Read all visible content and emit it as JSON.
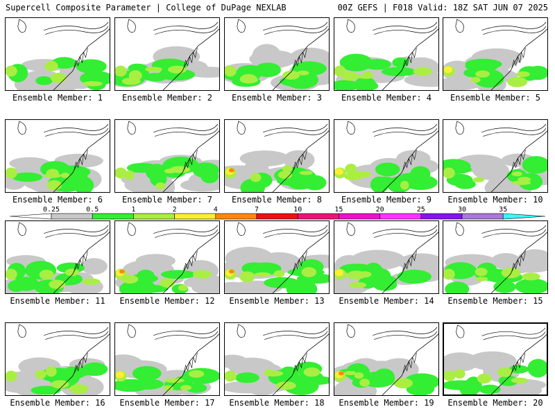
{
  "header": {
    "left_title": "Supercell Composite Parameter | College of DuPage NEXLAB",
    "right_title": "00Z GEFS | F018 Valid: 18Z SAT JUN 07 2025"
  },
  "colorbar": {
    "labels": [
      "0.25",
      "0.5",
      "1",
      "2",
      "4",
      "7",
      "10",
      "15",
      "20",
      "25",
      "30",
      "35"
    ],
    "colors": [
      "#ffffff",
      "#c8c8c8",
      "#33ee33",
      "#aaee44",
      "#ffee33",
      "#ff8811",
      "#ee1111",
      "#ee1177",
      "#ee11cc",
      "#ff33ff",
      "#8811ee",
      "#aa77dd",
      "#33ffff"
    ]
  },
  "members": [
    {
      "label": "Ensemble Member: 1",
      "intensity": 2
    },
    {
      "label": "Ensemble Member: 2",
      "intensity": 2
    },
    {
      "label": "Ensemble Member: 3",
      "intensity": 2
    },
    {
      "label": "Ensemble Member: 4",
      "intensity": 2
    },
    {
      "label": "Ensemble Member: 5",
      "intensity": 3
    },
    {
      "label": "Ensemble Member: 6",
      "intensity": 2
    },
    {
      "label": "Ensemble Member: 7",
      "intensity": 2
    },
    {
      "label": "Ensemble Member: 8",
      "intensity": 4
    },
    {
      "label": "Ensemble Member: 9",
      "intensity": 3
    },
    {
      "label": "Ensemble Member: 10",
      "intensity": 2
    },
    {
      "label": "Ensemble Member: 11",
      "intensity": 2
    },
    {
      "label": "Ensemble Member: 12",
      "intensity": 4
    },
    {
      "label": "Ensemble Member: 13",
      "intensity": 4
    },
    {
      "label": "Ensemble Member: 14",
      "intensity": 3
    },
    {
      "label": "Ensemble Member: 15",
      "intensity": 2
    },
    {
      "label": "Ensemble Member: 16",
      "intensity": 2
    },
    {
      "label": "Ensemble Member: 17",
      "intensity": 3
    },
    {
      "label": "Ensemble Member: 18",
      "intensity": 2
    },
    {
      "label": "Ensemble Member: 19",
      "intensity": 4
    },
    {
      "label": "Ensemble Member: 20",
      "intensity": 2
    }
  ],
  "selected_member": "Ensemble Member: 20"
}
